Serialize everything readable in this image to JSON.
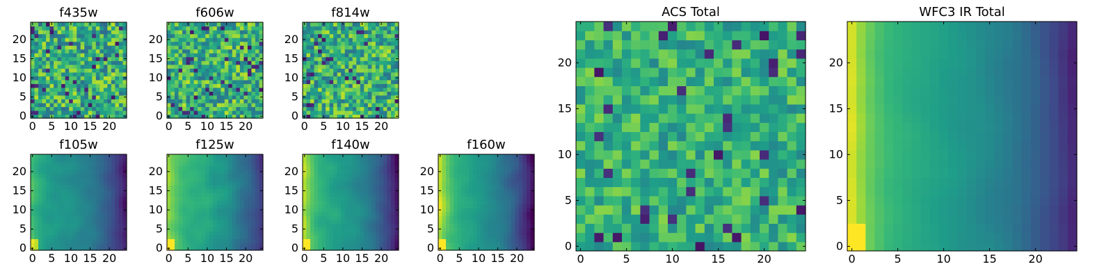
{
  "figure": {
    "layout": "2x4 small panels + 2 large panels",
    "colormap": "viridis"
  },
  "chart_data": [
    {
      "type": "heatmap",
      "title": "f435w",
      "grid": [
        25,
        25
      ],
      "xlim": [
        0,
        24
      ],
      "ylim": [
        0,
        24
      ],
      "xticks": [
        0,
        5,
        10,
        15,
        20
      ],
      "yticks": [
        0,
        5,
        10,
        15,
        20
      ],
      "pattern": "noise",
      "mean": 0.62,
      "spread": 0.28,
      "seed": 11
    },
    {
      "type": "heatmap",
      "title": "f606w",
      "grid": [
        25,
        25
      ],
      "xlim": [
        0,
        24
      ],
      "ylim": [
        0,
        24
      ],
      "xticks": [
        0,
        5,
        10,
        15,
        20
      ],
      "yticks": [
        0,
        5,
        10,
        15,
        20
      ],
      "pattern": "noise",
      "mean": 0.64,
      "spread": 0.26,
      "seed": 23
    },
    {
      "type": "heatmap",
      "title": "f814w",
      "grid": [
        25,
        25
      ],
      "xlim": [
        0,
        24
      ],
      "ylim": [
        0,
        24
      ],
      "xticks": [
        0,
        5,
        10,
        15,
        20
      ],
      "yticks": [
        0,
        5,
        10,
        15,
        20
      ],
      "pattern": "noise",
      "mean": 0.63,
      "spread": 0.27,
      "seed": 37
    },
    {
      "type": "heatmap",
      "title": "f105w",
      "grid": [
        25,
        25
      ],
      "xlim": [
        0,
        24
      ],
      "ylim": [
        0,
        24
      ],
      "xticks": [
        0,
        5,
        10,
        15,
        20
      ],
      "yticks": [
        0,
        5,
        10,
        15,
        20
      ],
      "pattern": "gradient",
      "mean": 0.5,
      "spread": 0.14,
      "left_boost": 0.18,
      "right_drop": 0.42,
      "seed": 41
    },
    {
      "type": "heatmap",
      "title": "f125w",
      "grid": [
        25,
        25
      ],
      "xlim": [
        0,
        24
      ],
      "ylim": [
        0,
        24
      ],
      "xticks": [
        0,
        5,
        10,
        15,
        20
      ],
      "yticks": [
        0,
        5,
        10,
        15,
        20
      ],
      "pattern": "gradient",
      "mean": 0.6,
      "spread": 0.16,
      "left_boost": 0.22,
      "right_drop": 0.45,
      "seed": 53
    },
    {
      "type": "heatmap",
      "title": "f140w",
      "grid": [
        25,
        25
      ],
      "xlim": [
        0,
        24
      ],
      "ylim": [
        0,
        24
      ],
      "xticks": [
        0,
        5,
        10,
        15,
        20
      ],
      "yticks": [
        0,
        5,
        10,
        15,
        20
      ],
      "pattern": "gradient",
      "mean": 0.56,
      "spread": 0.14,
      "left_boost": 0.32,
      "right_drop": 0.5,
      "seed": 67
    },
    {
      "type": "heatmap",
      "title": "f160w",
      "grid": [
        25,
        25
      ],
      "xlim": [
        0,
        24
      ],
      "ylim": [
        0,
        24
      ],
      "xticks": [
        0,
        5,
        10,
        15,
        20
      ],
      "yticks": [
        0,
        5,
        10,
        15,
        20
      ],
      "pattern": "gradient",
      "mean": 0.55,
      "spread": 0.14,
      "left_boost": 0.36,
      "right_drop": 0.52,
      "seed": 79
    },
    {
      "type": "heatmap",
      "title": "ACS Total",
      "grid": [
        25,
        25
      ],
      "xlim": [
        0,
        24
      ],
      "ylim": [
        0,
        24
      ],
      "xticks": [
        0,
        5,
        10,
        15,
        20
      ],
      "yticks": [
        0,
        5,
        10,
        15,
        20
      ],
      "pattern": "noise",
      "mean": 0.64,
      "spread": 0.18,
      "seed": 97
    },
    {
      "type": "heatmap",
      "title": "WFC3 IR Total",
      "grid": [
        25,
        25
      ],
      "xlim": [
        0,
        24
      ],
      "ylim": [
        0,
        24
      ],
      "xticks": [
        0,
        5,
        10,
        15,
        20
      ],
      "yticks": [
        0,
        5,
        10,
        15,
        20
      ],
      "pattern": "gradient",
      "mean": 0.56,
      "spread": 0.07,
      "left_boost": 0.38,
      "right_drop": 0.45,
      "seed": 101
    }
  ]
}
